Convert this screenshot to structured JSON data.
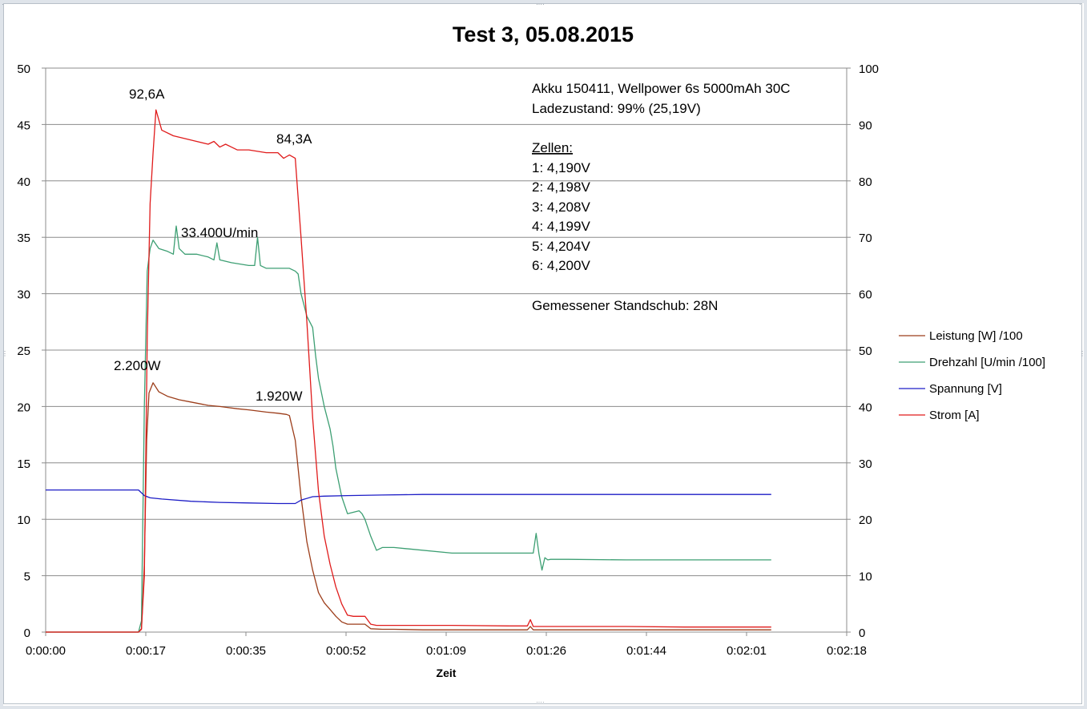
{
  "chart_data": {
    "type": "line",
    "title": "Test 3, 05.08.2015",
    "xlabel": "Zeit",
    "ylabel": "",
    "y2label": "",
    "x_ticks": [
      "0:00:00",
      "0:00:17",
      "0:00:35",
      "0:00:52",
      "0:01:09",
      "0:01:26",
      "0:01:44",
      "0:02:01",
      "0:02:18"
    ],
    "x_range_seconds": [
      0,
      138
    ],
    "ylim": [
      0,
      50
    ],
    "y_ticks": [
      "0",
      "5",
      "10",
      "15",
      "20",
      "25",
      "30",
      "35",
      "40",
      "45",
      "50"
    ],
    "y2lim": [
      0,
      100
    ],
    "y2_ticks": [
      "0",
      "10",
      "20",
      "30",
      "40",
      "50",
      "60",
      "70",
      "80",
      "90",
      "100"
    ],
    "grid": "horizontal major lines",
    "legend_position": "right",
    "series": [
      {
        "name": "Leistung [W] /100",
        "color": "#9c3d1a",
        "axis": "left",
        "x": [
          0,
          16,
          16.5,
          17,
          17.4,
          17.8,
          18.5,
          19.5,
          21,
          23,
          25,
          28,
          30,
          33,
          35,
          38,
          40,
          41.5,
          42,
          43,
          44,
          45,
          46,
          47,
          48,
          49,
          50,
          51,
          52,
          54,
          55,
          56,
          58,
          60,
          65,
          70,
          75,
          80,
          83,
          83.5,
          84,
          85,
          90,
          95,
          100,
          110,
          120,
          125
        ],
        "y": [
          0,
          0,
          0.3,
          6,
          17,
          21.2,
          22.1,
          21.3,
          20.9,
          20.6,
          20.4,
          20.1,
          20.0,
          19.8,
          19.7,
          19.5,
          19.4,
          19.3,
          19.2,
          17,
          12,
          8,
          5.5,
          3.5,
          2.6,
          2.0,
          1.4,
          0.9,
          0.7,
          0.7,
          0.7,
          0.3,
          0.25,
          0.25,
          0.2,
          0.2,
          0.2,
          0.2,
          0.2,
          0.5,
          0.2,
          0.2,
          0.2,
          0.2,
          0.2,
          0.2,
          0.2,
          0.2
        ]
      },
      {
        "name": "Drehzahl [U/min /100]",
        "color": "#3d9f73",
        "axis": "right",
        "x": [
          0,
          16,
          16.5,
          17,
          17.5,
          18,
          18.5,
          19.5,
          21,
          22,
          22.5,
          23,
          24,
          26,
          28,
          29,
          29.5,
          30,
          32,
          35,
          36,
          36.5,
          37,
          38,
          40,
          42,
          43,
          43.5,
          44,
          44.5,
          45,
          46,
          46.5,
          47,
          48,
          49,
          49.5,
          50,
          51,
          52,
          54,
          54.5,
          55,
          56,
          57,
          58,
          60,
          62,
          70,
          75,
          80,
          84,
          84.5,
          85,
          85.5,
          86,
          86.5,
          87,
          90,
          100,
          110,
          120,
          125
        ],
        "y": [
          0,
          0,
          2,
          40,
          64,
          68,
          69.5,
          68,
          67.5,
          67,
          72,
          68,
          67,
          67,
          66.5,
          66,
          69,
          66,
          65.5,
          65,
          65,
          70,
          65,
          64.5,
          64.5,
          64.5,
          64,
          63.5,
          60,
          58,
          56,
          54,
          49,
          45,
          40,
          36,
          33,
          29,
          24,
          21,
          21.5,
          21,
          20,
          17,
          14.5,
          15,
          15,
          14.8,
          14,
          14,
          14,
          14,
          17.5,
          13.8,
          11,
          13.2,
          12.8,
          12.9,
          12.9,
          12.8,
          12.8,
          12.8,
          12.8
        ]
      },
      {
        "name": "Spannung [V]",
        "color": "#1d1dc6",
        "axis": "left",
        "x": [
          0,
          16,
          17,
          18,
          20,
          25,
          30,
          35,
          40,
          43,
          44,
          46,
          48,
          52,
          58,
          65,
          70,
          80,
          90,
          100,
          110,
          120,
          125
        ],
        "y": [
          12.6,
          12.6,
          12.1,
          11.9,
          11.8,
          11.6,
          11.5,
          11.45,
          11.4,
          11.4,
          11.7,
          12.0,
          12.05,
          12.1,
          12.15,
          12.2,
          12.2,
          12.2,
          12.2,
          12.2,
          12.2,
          12.2,
          12.2
        ]
      },
      {
        "name": "Strom [A]",
        "color": "#e01b1b",
        "axis": "right",
        "x": [
          0,
          16,
          16.5,
          17,
          17.5,
          18,
          18.5,
          19,
          20,
          22,
          24,
          26,
          28,
          29,
          30,
          31,
          32,
          33,
          35,
          38,
          40,
          41,
          41.5,
          42,
          43,
          44,
          45,
          46,
          47,
          48,
          49,
          50,
          51,
          52,
          53,
          54,
          55,
          56,
          57,
          58,
          60,
          65,
          70,
          80,
          83,
          83.5,
          84,
          85,
          90,
          100,
          110,
          120,
          125
        ],
        "y": [
          0,
          0,
          0.5,
          10,
          52,
          76,
          85,
          92.6,
          89,
          88,
          87.5,
          87,
          86.5,
          87,
          86,
          86.5,
          86,
          85.5,
          85.5,
          85,
          85,
          84,
          84.3,
          84.6,
          84,
          70,
          55,
          38,
          25,
          17,
          12,
          8,
          5,
          3,
          2.8,
          2.8,
          2.8,
          1.4,
          1.2,
          1.2,
          1.2,
          1.2,
          1.2,
          1.1,
          1.1,
          2.2,
          1.0,
          1.0,
          1.0,
          1.0,
          0.9,
          0.9,
          0.9
        ]
      }
    ],
    "annotations": {
      "peak_current": "92,6A",
      "end_current": "84,3A",
      "rpm": "33.400U/min",
      "peak_power": "2.200W",
      "end_power": "1.920W"
    },
    "info_box": {
      "battery": "Akku 150411, Wellpower 6s 5000mAh 30C",
      "charge": "Ladezustand: 99% (25,19V)",
      "cells_heading": "Zellen:",
      "cells": [
        "1:  4,190V",
        "2:  4,198V",
        "3:  4,208V",
        "4:  4,199V",
        "5:  4,204V",
        "6:  4,200V"
      ],
      "thrust": "Gemessener Standschub: 28N"
    }
  }
}
